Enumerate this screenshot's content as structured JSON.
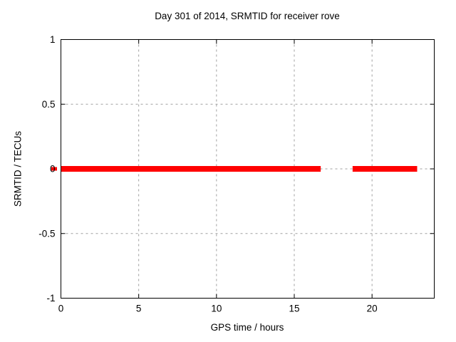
{
  "chart_data": {
    "type": "line",
    "title": "Day 301 of 2014, SRMTID for receiver rove",
    "xlabel": "GPS time / hours",
    "ylabel": "SRMTID / TECUs",
    "xlim": [
      0,
      24
    ],
    "ylim": [
      -1,
      1
    ],
    "xticks": [
      0,
      5,
      10,
      15,
      20
    ],
    "xtick_labels": [
      "0",
      "5",
      "10",
      "15",
      "20"
    ],
    "yticks": [
      -1,
      -0.5,
      0,
      0.5,
      1
    ],
    "ytick_labels": [
      "-1",
      "-0.5",
      "0",
      "0.5",
      "1"
    ],
    "grid": true,
    "grid_style": "dashed",
    "tick_mirror": true,
    "series": [
      {
        "name": "SRMTID",
        "value_y": 0,
        "segments_hours": [
          [
            0,
            16.7
          ],
          [
            18.75,
            22.9
          ]
        ]
      }
    ],
    "red_tick_outside_left_axis_at_y0": true,
    "colors": {
      "line": "#ff0000",
      "grid": "#a0a0a0",
      "border": "#000000",
      "text": "#000000",
      "background": "#ffffff"
    }
  }
}
